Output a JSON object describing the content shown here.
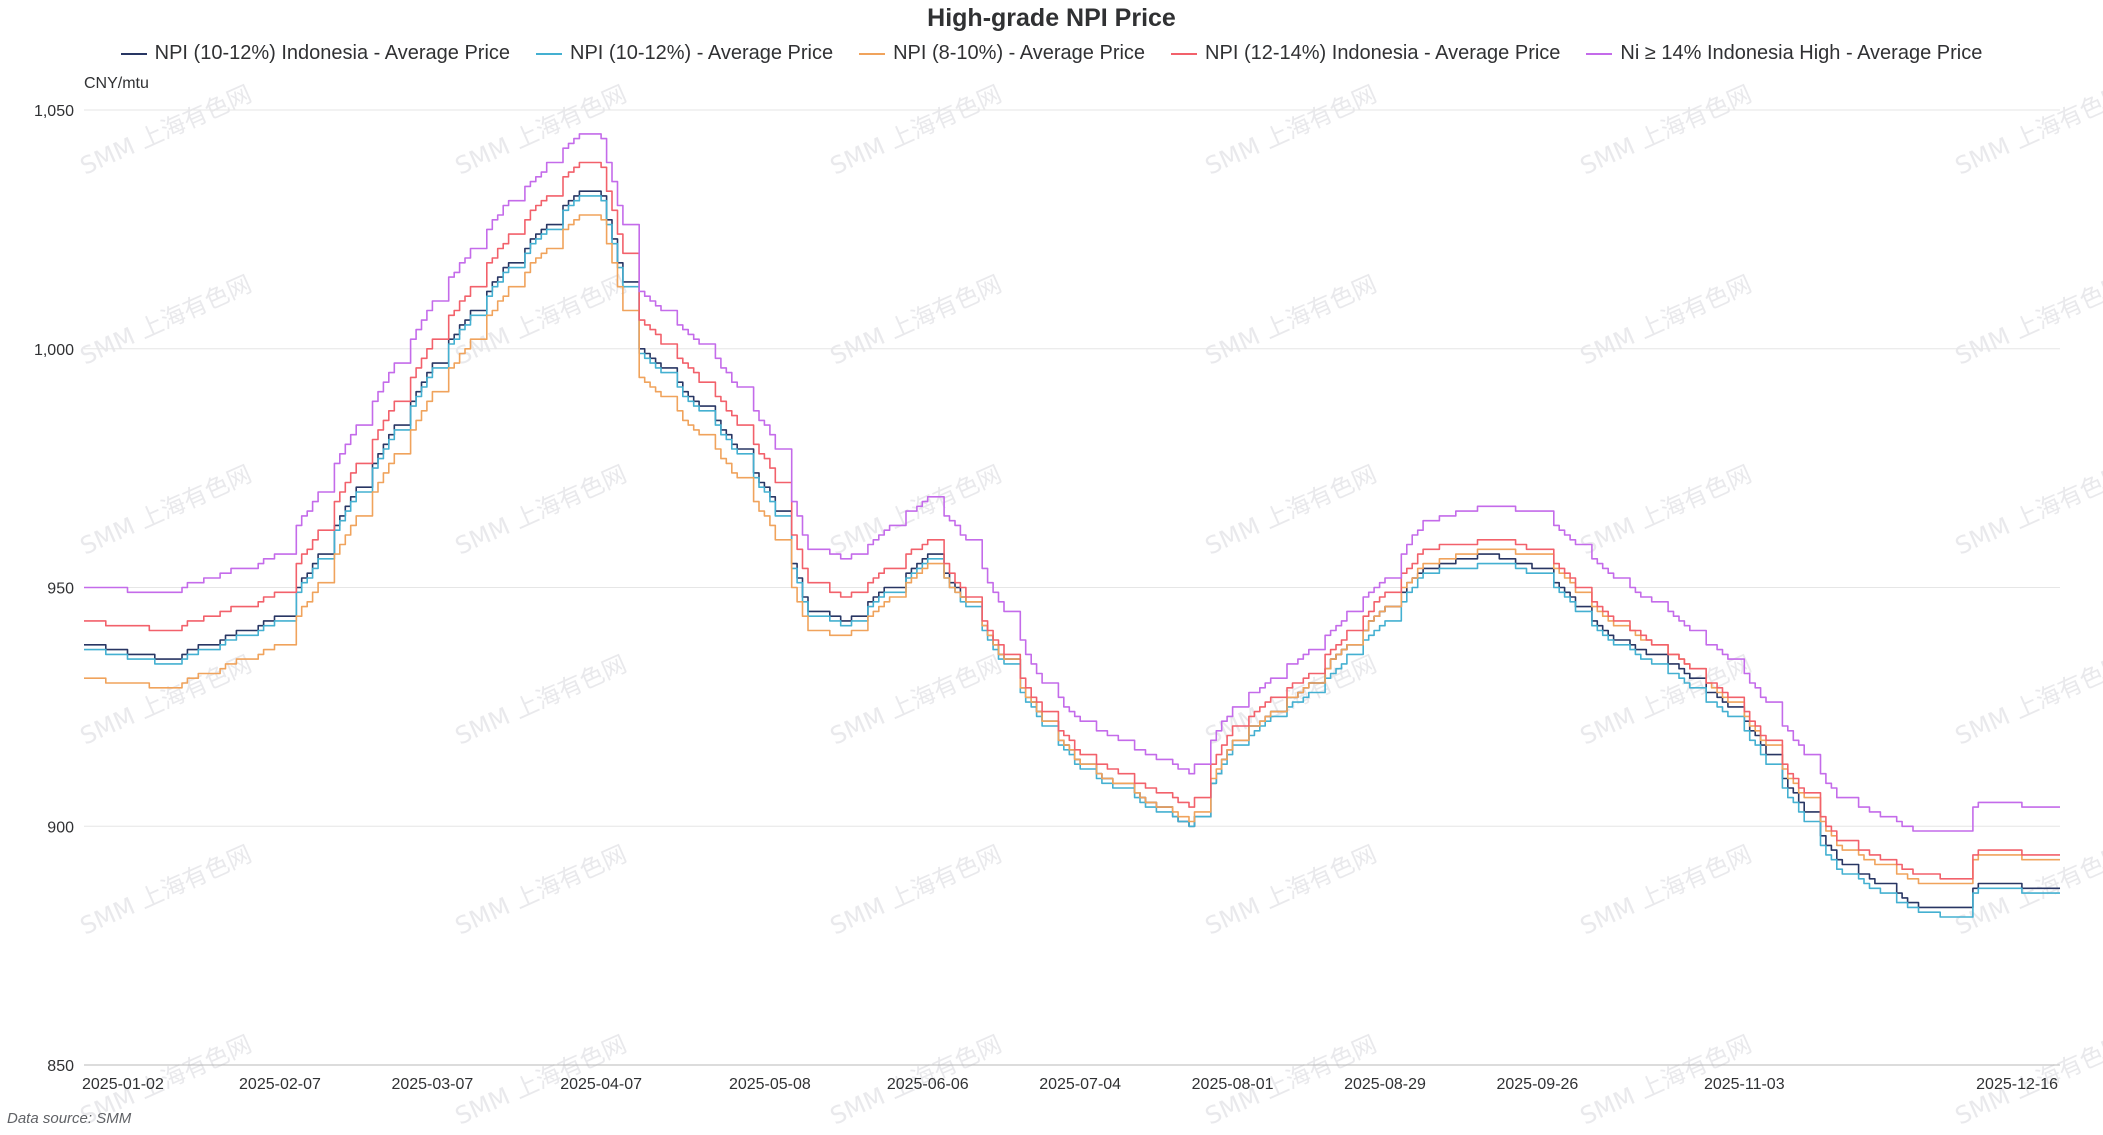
{
  "chart_data": {
    "type": "line",
    "title": "High-grade NPI Price",
    "ylabel": "CNY/mtu",
    "ylim": [
      850,
      1050
    ],
    "yticks": [
      "850",
      "900",
      "950",
      "1,000",
      "1,050"
    ],
    "ytick_values": [
      850,
      900,
      950,
      1000,
      1050
    ],
    "xticks": [
      "2025-01-02",
      "2025-02-07",
      "2025-03-07",
      "2025-04-07",
      "2025-05-08",
      "2025-06-06",
      "2025-07-04",
      "2025-08-01",
      "2025-08-29",
      "2025-09-26",
      "2025-11-03",
      "2025-12-16"
    ],
    "grid": true,
    "legend_position": "top",
    "source": "Data source:  SMM",
    "watermark": "SMM 上海有色网",
    "series": [
      {
        "name": "NPI (10-12%) Indonesia - Average Price",
        "color": "#283663",
        "points": [
          [
            "2025-01-02",
            938
          ],
          [
            "2025-01-17",
            935
          ],
          [
            "2025-02-07",
            944
          ],
          [
            "2025-03-07",
            997
          ],
          [
            "2025-03-21",
            1018
          ],
          [
            "2025-04-03",
            1033
          ],
          [
            "2025-04-07",
            1032
          ],
          [
            "2025-04-14",
            1000
          ],
          [
            "2025-04-28",
            985
          ],
          [
            "2025-05-08",
            969
          ],
          [
            "2025-05-15",
            945
          ],
          [
            "2025-05-22",
            943
          ],
          [
            "2025-06-06",
            957
          ],
          [
            "2025-06-13",
            947
          ],
          [
            "2025-06-27",
            922
          ],
          [
            "2025-07-04",
            913
          ],
          [
            "2025-07-18",
            904
          ],
          [
            "2025-07-24",
            900
          ],
          [
            "2025-08-01",
            918
          ],
          [
            "2025-08-15",
            930
          ],
          [
            "2025-08-29",
            946
          ],
          [
            "2025-09-05",
            954
          ],
          [
            "2025-09-17",
            957
          ],
          [
            "2025-09-26",
            954
          ],
          [
            "2025-10-09",
            940
          ],
          [
            "2025-10-22",
            933
          ],
          [
            "2025-11-03",
            922
          ],
          [
            "2025-11-20",
            893
          ],
          [
            "2025-12-05",
            883
          ],
          [
            "2025-12-12",
            883
          ],
          [
            "2025-12-16",
            888
          ],
          [
            "2025-12-31",
            887
          ]
        ]
      },
      {
        "name": "NPI (10-12%) - Average Price",
        "color": "#44b0d1",
        "points": [
          [
            "2025-01-02",
            937
          ],
          [
            "2025-01-17",
            934
          ],
          [
            "2025-02-07",
            943
          ],
          [
            "2025-03-07",
            996
          ],
          [
            "2025-03-21",
            1017
          ],
          [
            "2025-04-03",
            1032
          ],
          [
            "2025-04-07",
            1031
          ],
          [
            "2025-04-14",
            999
          ],
          [
            "2025-04-28",
            984
          ],
          [
            "2025-05-08",
            968
          ],
          [
            "2025-05-15",
            944
          ],
          [
            "2025-05-22",
            942
          ],
          [
            "2025-06-06",
            956
          ],
          [
            "2025-06-13",
            946
          ],
          [
            "2025-06-27",
            921
          ],
          [
            "2025-07-04",
            912
          ],
          [
            "2025-07-18",
            903
          ],
          [
            "2025-07-24",
            900
          ],
          [
            "2025-08-01",
            917
          ],
          [
            "2025-08-15",
            928
          ],
          [
            "2025-08-29",
            943
          ],
          [
            "2025-09-05",
            953
          ],
          [
            "2025-09-17",
            955
          ],
          [
            "2025-09-26",
            953
          ],
          [
            "2025-10-09",
            939
          ],
          [
            "2025-10-22",
            931
          ],
          [
            "2025-11-03",
            920
          ],
          [
            "2025-11-20",
            891
          ],
          [
            "2025-12-05",
            882
          ],
          [
            "2025-12-12",
            881
          ],
          [
            "2025-12-16",
            887
          ],
          [
            "2025-12-31",
            886
          ]
        ]
      },
      {
        "name": "NPI (8-10%) - Average Price",
        "color": "#f0a35c",
        "points": [
          [
            "2025-01-02",
            931
          ],
          [
            "2025-01-17",
            929
          ],
          [
            "2025-02-07",
            938
          ],
          [
            "2025-03-07",
            991
          ],
          [
            "2025-03-21",
            1013
          ],
          [
            "2025-04-03",
            1028
          ],
          [
            "2025-04-07",
            1027
          ],
          [
            "2025-04-14",
            994
          ],
          [
            "2025-04-28",
            979
          ],
          [
            "2025-05-08",
            963
          ],
          [
            "2025-05-15",
            941
          ],
          [
            "2025-05-22",
            940
          ],
          [
            "2025-06-06",
            955
          ],
          [
            "2025-06-13",
            947
          ],
          [
            "2025-06-27",
            922
          ],
          [
            "2025-07-04",
            913
          ],
          [
            "2025-07-18",
            904
          ],
          [
            "2025-07-24",
            901
          ],
          [
            "2025-08-01",
            918
          ],
          [
            "2025-08-15",
            930
          ],
          [
            "2025-08-29",
            946
          ],
          [
            "2025-09-05",
            955
          ],
          [
            "2025-09-17",
            958
          ],
          [
            "2025-09-26",
            957
          ],
          [
            "2025-10-09",
            943
          ],
          [
            "2025-10-22",
            935
          ],
          [
            "2025-11-03",
            923
          ],
          [
            "2025-11-20",
            896
          ],
          [
            "2025-12-05",
            888
          ],
          [
            "2025-12-12",
            888
          ],
          [
            "2025-12-16",
            894
          ],
          [
            "2025-12-31",
            893
          ]
        ]
      },
      {
        "name": "NPI (12-14%) Indonesia - Average Price",
        "color": "#f2616b",
        "points": [
          [
            "2025-01-02",
            943
          ],
          [
            "2025-01-17",
            941
          ],
          [
            "2025-02-07",
            949
          ],
          [
            "2025-03-07",
            1002
          ],
          [
            "2025-03-21",
            1024
          ],
          [
            "2025-04-03",
            1039
          ],
          [
            "2025-04-07",
            1038
          ],
          [
            "2025-04-14",
            1006
          ],
          [
            "2025-04-28",
            990
          ],
          [
            "2025-05-08",
            975
          ],
          [
            "2025-05-15",
            951
          ],
          [
            "2025-05-22",
            948
          ],
          [
            "2025-06-06",
            960
          ],
          [
            "2025-06-13",
            948
          ],
          [
            "2025-06-27",
            924
          ],
          [
            "2025-07-04",
            915
          ],
          [
            "2025-07-18",
            907
          ],
          [
            "2025-07-24",
            904
          ],
          [
            "2025-08-01",
            921
          ],
          [
            "2025-08-15",
            932
          ],
          [
            "2025-08-29",
            949
          ],
          [
            "2025-09-05",
            958
          ],
          [
            "2025-09-17",
            960
          ],
          [
            "2025-09-26",
            958
          ],
          [
            "2025-10-09",
            944
          ],
          [
            "2025-10-22",
            935
          ],
          [
            "2025-11-03",
            924
          ],
          [
            "2025-11-20",
            897
          ],
          [
            "2025-12-05",
            890
          ],
          [
            "2025-12-12",
            889
          ],
          [
            "2025-12-16",
            895
          ],
          [
            "2025-12-31",
            894
          ]
        ]
      },
      {
        "name": "Ni ≥ 14% Indonesia High - Average Price",
        "color": "#c46bea",
        "points": [
          [
            "2025-01-02",
            950
          ],
          [
            "2025-01-17",
            949
          ],
          [
            "2025-02-07",
            957
          ],
          [
            "2025-03-07",
            1010
          ],
          [
            "2025-03-21",
            1031
          ],
          [
            "2025-04-03",
            1045
          ],
          [
            "2025-04-07",
            1044
          ],
          [
            "2025-04-14",
            1012
          ],
          [
            "2025-04-28",
            998
          ],
          [
            "2025-05-08",
            982
          ],
          [
            "2025-05-15",
            958
          ],
          [
            "2025-05-22",
            956
          ],
          [
            "2025-06-06",
            969
          ],
          [
            "2025-06-13",
            960
          ],
          [
            "2025-06-27",
            930
          ],
          [
            "2025-07-04",
            922
          ],
          [
            "2025-07-18",
            914
          ],
          [
            "2025-07-24",
            911
          ],
          [
            "2025-08-01",
            925
          ],
          [
            "2025-08-15",
            937
          ],
          [
            "2025-08-29",
            952
          ],
          [
            "2025-09-05",
            964
          ],
          [
            "2025-09-17",
            967
          ],
          [
            "2025-09-26",
            966
          ],
          [
            "2025-10-09",
            953
          ],
          [
            "2025-10-22",
            943
          ],
          [
            "2025-11-03",
            932
          ],
          [
            "2025-11-20",
            906
          ],
          [
            "2025-12-05",
            899
          ],
          [
            "2025-12-12",
            899
          ],
          [
            "2025-12-16",
            905
          ],
          [
            "2025-12-31",
            904
          ]
        ]
      }
    ]
  }
}
